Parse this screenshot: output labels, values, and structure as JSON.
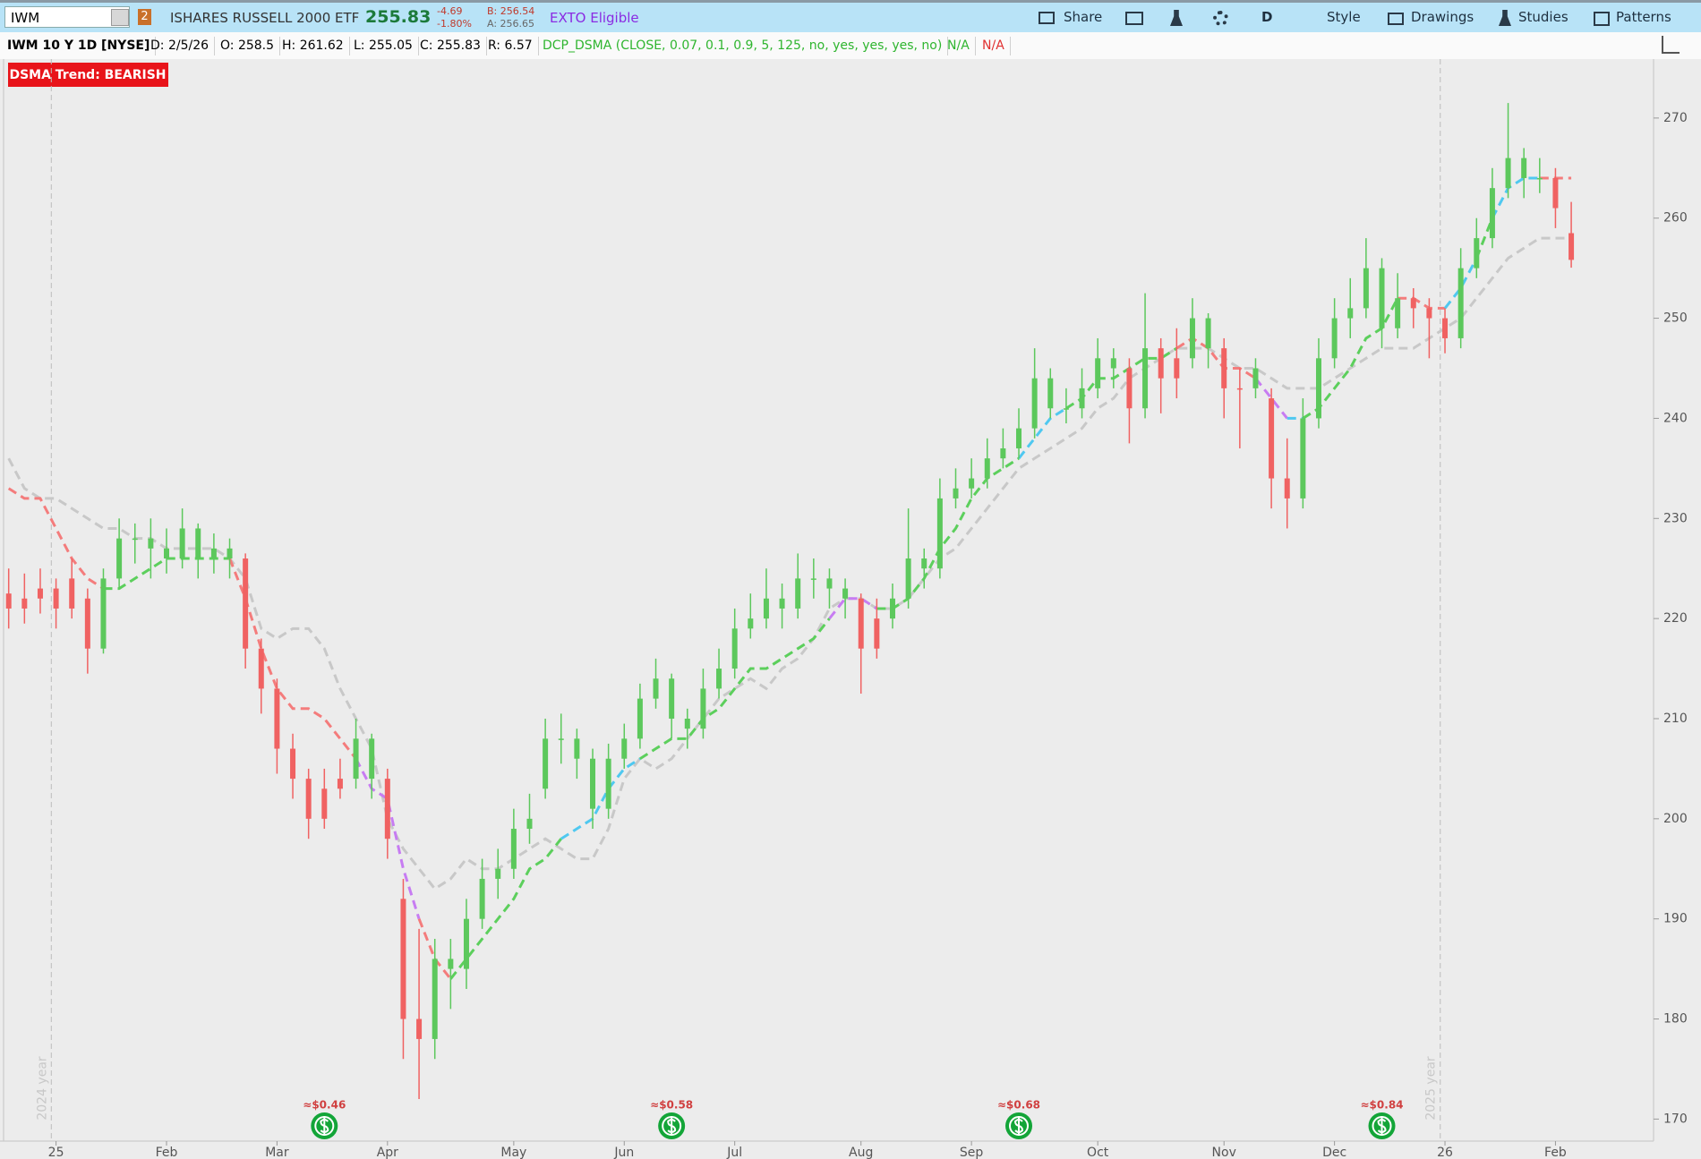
{
  "toolbar": {
    "symbol": "IWM",
    "link_group": "2",
    "description": "ISHARES RUSSELL 2000 ETF",
    "last": "255.83",
    "change": "-4.69",
    "change_pct": "-1.80%",
    "bid": "B: 256.54",
    "ask": "A: 256.65",
    "exto": "EXTO Eligible",
    "buttons": [
      "Share",
      "D",
      "Style",
      "Drawings",
      "Studies",
      "Patterns"
    ]
  },
  "header": {
    "chart_label": "IWM 10 Y 1D [NYSE]",
    "fields": [
      "D: 2/5/26",
      "O: 258.5",
      "H: 261.62",
      "L: 255.05",
      "C: 255.83",
      "R: 6.57"
    ],
    "study": "DCP_DSMA (CLOSE, 0.07, 0.1, 0.9, 5, 125, no, yes, yes, yes, no)",
    "study_values": [
      "N/A",
      "N/A"
    ]
  },
  "chart_data": {
    "type": "candlestick",
    "badge": "DSMA Trend: BEARISH",
    "year_labels": [
      "2024 year",
      "2025 year"
    ],
    "categories": [
      null,
      null,
      null,
      "25",
      null,
      null,
      null,
      null,
      null,
      null,
      "Feb",
      null,
      null,
      null,
      null,
      null,
      null,
      "Mar",
      null,
      null,
      null,
      null,
      null,
      null,
      "Apr",
      null,
      null,
      null,
      null,
      null,
      null,
      null,
      "May",
      null,
      null,
      null,
      null,
      null,
      null,
      "Jun",
      null,
      null,
      null,
      null,
      null,
      null,
      "Jul",
      null,
      null,
      null,
      null,
      null,
      null,
      null,
      "Aug",
      null,
      null,
      null,
      null,
      null,
      null,
      "Sep",
      null,
      null,
      null,
      null,
      null,
      null,
      null,
      "Oct",
      null,
      null,
      null,
      null,
      null,
      null,
      null,
      "Nov",
      null,
      null,
      null,
      null,
      null,
      null,
      "Dec",
      null,
      null,
      null,
      null,
      null,
      null,
      "26",
      null,
      null,
      null,
      null,
      null,
      null,
      "Feb",
      null
    ],
    "ohlc": [
      [
        222.5,
        225,
        219,
        221
      ],
      [
        221,
        224.5,
        219.5,
        222
      ],
      [
        222,
        225,
        220.5,
        223
      ],
      [
        223,
        224,
        219,
        221
      ],
      [
        221,
        226,
        220,
        224
      ],
      [
        222,
        223,
        214.5,
        217
      ],
      [
        217,
        225,
        216.5,
        224
      ],
      [
        224,
        230,
        223,
        228
      ],
      [
        228,
        229.5,
        225.5,
        228
      ],
      [
        228,
        230,
        224,
        227
      ],
      [
        227,
        229,
        224.5,
        226
      ],
      [
        226,
        231,
        225,
        229
      ],
      [
        229,
        229.5,
        224,
        226
      ],
      [
        226,
        228.5,
        224.5,
        227
      ],
      [
        227,
        228,
        224,
        226
      ],
      [
        226,
        226.5,
        215,
        217
      ],
      [
        217,
        218,
        210.5,
        213
      ],
      [
        213,
        214,
        204.5,
        207
      ],
      [
        207,
        208.5,
        202,
        204
      ],
      [
        204,
        205,
        198,
        200
      ],
      [
        200,
        205,
        199,
        203
      ],
      [
        203,
        206,
        202,
        204
      ],
      [
        204,
        210,
        203,
        208
      ],
      [
        208,
        208.5,
        202,
        204
      ],
      [
        204,
        205,
        196,
        198
      ],
      [
        192,
        194,
        176,
        180
      ],
      [
        180,
        189,
        172,
        178
      ],
      [
        178,
        188,
        176,
        186
      ],
      [
        186,
        188,
        181,
        185
      ],
      [
        185,
        192,
        183,
        190
      ],
      [
        190,
        196,
        189,
        194
      ],
      [
        194,
        197,
        192,
        195
      ],
      [
        195,
        201,
        194,
        199
      ],
      [
        199,
        202.5,
        197.5,
        200
      ],
      [
        203,
        210,
        202,
        208
      ],
      [
        208,
        210.5,
        205.5,
        208
      ],
      [
        208,
        209,
        204,
        206
      ],
      [
        206,
        207,
        199,
        201
      ],
      [
        201,
        207.5,
        200,
        206
      ],
      [
        206,
        209.5,
        205,
        208
      ],
      [
        208,
        213.5,
        207,
        212
      ],
      [
        212,
        216,
        211,
        214
      ],
      [
        214,
        214.5,
        208,
        210
      ],
      [
        210,
        211,
        207,
        209
      ],
      [
        209,
        215,
        208,
        213
      ],
      [
        213,
        217,
        212,
        215
      ],
      [
        215,
        221,
        214,
        219
      ],
      [
        219,
        222.5,
        218,
        220
      ],
      [
        220,
        225,
        219,
        222
      ],
      [
        222,
        223.5,
        219,
        221
      ],
      [
        221,
        226.5,
        220,
        224
      ],
      [
        224,
        226,
        222,
        224
      ],
      [
        224,
        225,
        221,
        223
      ],
      [
        223,
        224,
        220,
        222
      ],
      [
        222,
        222.5,
        212.5,
        217
      ],
      [
        217,
        222,
        216,
        220
      ],
      [
        220,
        223.5,
        219,
        222
      ],
      [
        222,
        231,
        221,
        226
      ],
      [
        226,
        227,
        223,
        225
      ],
      [
        225,
        234,
        224,
        232
      ],
      [
        232,
        235,
        231,
        233
      ],
      [
        233,
        236,
        232,
        234
      ],
      [
        234,
        238,
        233,
        236
      ],
      [
        236,
        239,
        235,
        237
      ],
      [
        237,
        241,
        236,
        239
      ],
      [
        239,
        247,
        238,
        244
      ],
      [
        244,
        245,
        240,
        241
      ],
      [
        241,
        243,
        239.5,
        241
      ],
      [
        241,
        245,
        240,
        243
      ],
      [
        243,
        248,
        242,
        246
      ],
      [
        246,
        247,
        243,
        245
      ],
      [
        245,
        246,
        237.5,
        241
      ],
      [
        241,
        252.5,
        240,
        247
      ],
      [
        247,
        248,
        240.5,
        244
      ],
      [
        244,
        249,
        242,
        246
      ],
      [
        246,
        252,
        245,
        250
      ],
      [
        250,
        250.5,
        245,
        247
      ],
      [
        247,
        248,
        240,
        243
      ],
      [
        243,
        245,
        237,
        243
      ],
      [
        243,
        246,
        242,
        245
      ],
      [
        242,
        243,
        231,
        234
      ],
      [
        234,
        238,
        229,
        232
      ],
      [
        232,
        242,
        231,
        240
      ],
      [
        240,
        248,
        239,
        246
      ],
      [
        246,
        252,
        245,
        250
      ],
      [
        250,
        254,
        248,
        251
      ],
      [
        251,
        258,
        250,
        255
      ],
      [
        255,
        256,
        247,
        249
      ],
      [
        249,
        254.5,
        248,
        252
      ],
      [
        252,
        253,
        249,
        251
      ],
      [
        251,
        252,
        246,
        250
      ],
      [
        250,
        251,
        246.5,
        248
      ],
      [
        248,
        257,
        247,
        255
      ],
      [
        255,
        260,
        254,
        258
      ],
      [
        258,
        265,
        257,
        263
      ],
      [
        263,
        271.5,
        262,
        266
      ],
      [
        266,
        267,
        262,
        264
      ],
      [
        264,
        266,
        262.5,
        264
      ],
      [
        264,
        265,
        259,
        261
      ],
      [
        258.5,
        261.62,
        255.05,
        255.83
      ]
    ],
    "candle_colors": {
      "bull": "#5cc85c",
      "bear": "#f06262"
    },
    "lines": [
      {
        "values": [
          233,
          232,
          232,
          229,
          226,
          224,
          223,
          223,
          224,
          225,
          226,
          226,
          226,
          226,
          226,
          222,
          217,
          213,
          211,
          211,
          210,
          208,
          206,
          203,
          202,
          195,
          190,
          186,
          184,
          186,
          188,
          190,
          192,
          195,
          196,
          198,
          199,
          200,
          203,
          205,
          206,
          207,
          208,
          208,
          210,
          211,
          213,
          215,
          215,
          216,
          217,
          218,
          220,
          222,
          222,
          221,
          221,
          222,
          224,
          227,
          229,
          232,
          234,
          235,
          236,
          238,
          240,
          241,
          242,
          244,
          244,
          245,
          246,
          246,
          247,
          248,
          247,
          245,
          245,
          244,
          242,
          240,
          240,
          241,
          243,
          245,
          248,
          249,
          252,
          252,
          251,
          251,
          253,
          256,
          260,
          263,
          264,
          264,
          264,
          264
        ],
        "colors": [
          "#f47c7c",
          "#f47c7c",
          "#f47c7c",
          "#f47c7c",
          "#f47c7c",
          "#f47c7c",
          "#f47c7c",
          "#5ccf5c",
          "#5ccf5c",
          "#5ccf5c",
          "#5ccf5c",
          "#5ccf5c",
          "#5ccf5c",
          "#5ccf5c",
          "#5ccf5c",
          "#f47c7c",
          "#f47c7c",
          "#f47c7c",
          "#f47c7c",
          "#f47c7c",
          "#f47c7c",
          "#f47c7c",
          "#f47c7c",
          "#c77cf2",
          "#c77cf2",
          "#c77cf2",
          "#c77cf2",
          "#f47c7c",
          "#f47c7c",
          "#5ccf5c",
          "#5ccf5c",
          "#5ccf5c",
          "#5ccf5c",
          "#5ccf5c",
          "#5ccf5c",
          "#5ccf5c",
          "#4fc8f0",
          "#4fc8f0",
          "#4fc8f0",
          "#4fc8f0",
          "#4fc8f0",
          "#5ccf5c",
          "#5ccf5c",
          "#5ccf5c",
          "#5ccf5c",
          "#5ccf5c",
          "#5ccf5c",
          "#5ccf5c",
          "#5ccf5c",
          "#5ccf5c",
          "#5ccf5c",
          "#5ccf5c",
          "#5ccf5c",
          "#c77cf2",
          "#c77cf2",
          "#c77cf2",
          "#5ccf5c",
          "#5ccf5c",
          "#5ccf5c",
          "#5ccf5c",
          "#5ccf5c",
          "#5ccf5c",
          "#5ccf5c",
          "#5ccf5c",
          "#5ccf5c",
          "#4fc8f0",
          "#4fc8f0",
          "#4fc8f0",
          "#5ccf5c",
          "#5ccf5c",
          "#5ccf5c",
          "#5ccf5c",
          "#5ccf5c",
          "#5ccf5c",
          "#5ccf5c",
          "#f47c7c",
          "#f47c7c",
          "#f47c7c",
          "#f47c7c",
          "#f47c7c",
          "#c77cf2",
          "#c77cf2",
          "#4fc8f0",
          "#5ccf5c",
          "#5ccf5c",
          "#5ccf5c",
          "#5ccf5c",
          "#5ccf5c",
          "#5ccf5c",
          "#f47c7c",
          "#f47c7c",
          "#f47c7c",
          "#4fc8f0",
          "#4fc8f0",
          "#5ccf5c",
          "#4fc8f0",
          "#4fc8f0",
          "#4fc8f0",
          "#f47c7c",
          "#f47c7c"
        ]
      },
      {
        "values": [
          236,
          233,
          232,
          232,
          231,
          230,
          229,
          229,
          228,
          228,
          227,
          227,
          227,
          227,
          226,
          224,
          219,
          218,
          219,
          219,
          217,
          213,
          210,
          207,
          200,
          197,
          195,
          193,
          194,
          196,
          195,
          195,
          196,
          197,
          198,
          197,
          196,
          196,
          199,
          204,
          206,
          205,
          206,
          208,
          210,
          212,
          213,
          214,
          213,
          215,
          216,
          218,
          221,
          222,
          222,
          221,
          221,
          222,
          224,
          226,
          227,
          229,
          231,
          233,
          235,
          236,
          237,
          238,
          239,
          241,
          242,
          244,
          245,
          246,
          247,
          247,
          247,
          246,
          245,
          245,
          244,
          243,
          243,
          243,
          244,
          245,
          246,
          247,
          247,
          247,
          248,
          249,
          250,
          252,
          254,
          256,
          257,
          258,
          258,
          258
        ],
        "color": "#c8c8c8"
      }
    ],
    "dividends": {
      "values": [
        0.46,
        0.58,
        0.68,
        0.84
      ],
      "value_labels": [
        "≈$0.46",
        "≈$0.58",
        "≈$0.68",
        "≈$0.84"
      ],
      "color": "#13a538",
      "label_color": "#d04040"
    },
    "ylim": [
      167.8,
      275.8
    ],
    "yticks": [
      170,
      180,
      190,
      200,
      210,
      220,
      230,
      240,
      250,
      260,
      270
    ]
  }
}
